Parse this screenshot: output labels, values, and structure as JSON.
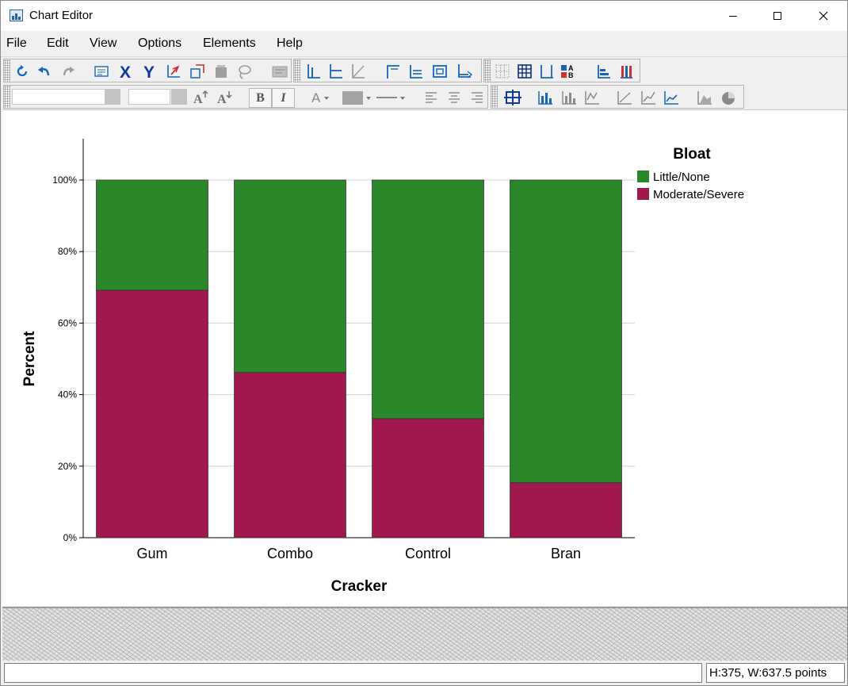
{
  "window": {
    "title": "Chart Editor"
  },
  "menu": [
    "File",
    "Edit",
    "View",
    "Options",
    "Elements",
    "Help"
  ],
  "toolbar": {
    "row1_icons": [
      "refresh-icon",
      "undo-icon",
      "redo-icon",
      "properties-icon",
      "x-axis-icon",
      "y-axis-icon",
      "rescale-icon",
      "transpose-icon",
      "deleted-element-icon",
      "lasso-icon",
      "annotation-icon",
      "show-data-labels-icon",
      "interpolation-line-icon",
      "fit-line-icon",
      "title-icon",
      "footnote-icon",
      "textbox-icon",
      "reference-line-icon",
      "grid-icon",
      "table-icon",
      "error-bars-icon",
      "legend-icon",
      "distribution-icon",
      "bar-color-icon"
    ],
    "row2_icons": [
      "font-size-increase-icon",
      "font-size-decrease-icon",
      "bold-icon",
      "italic-icon",
      "text-color-icon",
      "fill-color-icon",
      "line-style-icon",
      "align-left-icon",
      "align-center-icon",
      "align-right-icon",
      "chart-frame-icon",
      "bar-chart-icon",
      "stacked-bar-icon",
      "line-chart-icon",
      "scatter-icon",
      "area-icon",
      "pie-icon"
    ],
    "bold_label": "B",
    "italic_label": "I",
    "text_color_label": "A"
  },
  "chart_data": {
    "type": "bar",
    "stacked": true,
    "xlabel": "Cracker",
    "ylabel": "Percent",
    "categories": [
      "Gum",
      "Combo",
      "Control",
      "Bran"
    ],
    "series": [
      {
        "name": "Moderate/Severe",
        "values": [
          69.2,
          46.2,
          33.3,
          15.4
        ],
        "color": "#a0184e"
      },
      {
        "name": "Little/None",
        "values": [
          30.8,
          53.8,
          66.7,
          84.6
        ],
        "color": "#2a882a"
      }
    ],
    "ylim": [
      0,
      100
    ],
    "yticks": [
      "0%",
      "20%",
      "40%",
      "60%",
      "80%",
      "100%"
    ],
    "grid": true,
    "legend": {
      "title": "Bloat",
      "position": "top-right",
      "items": [
        "Little/None",
        "Moderate/Severe"
      ]
    }
  },
  "status": {
    "dimensions": "H:375, W:637.5 points"
  }
}
